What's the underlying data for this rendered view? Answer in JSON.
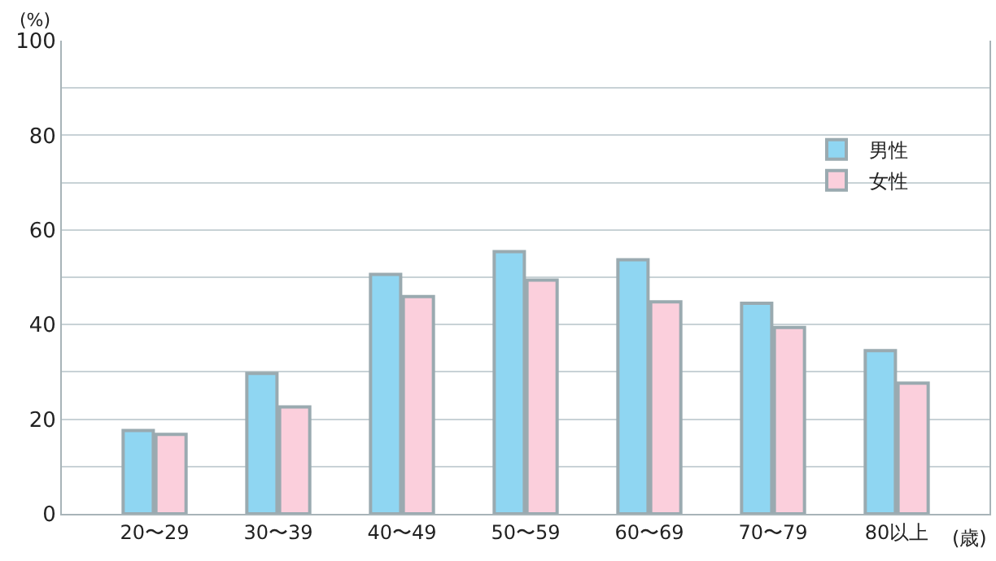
{
  "chart_data": {
    "type": "bar",
    "ylabel": "(%)",
    "xlabel": "(歳)",
    "categories": [
      "20〜29",
      "30〜39",
      "40〜49",
      "50〜59",
      "60〜69",
      "70〜79",
      "80以上"
    ],
    "series": [
      {
        "name": "男性",
        "color": "#8fd6f2",
        "values": [
          17.6,
          29.7,
          50.6,
          55.4,
          53.7,
          44.5,
          34.5
        ]
      },
      {
        "name": "女性",
        "color": "#fbcfdc",
        "values": [
          16.8,
          22.6,
          45.9,
          49.4,
          44.8,
          39.4,
          27.6
        ]
      }
    ],
    "ylim": [
      0,
      100
    ],
    "yticks": [
      0,
      {
        "value": 10,
        "label": null
      },
      20,
      {
        "value": 30,
        "label": null
      },
      40,
      {
        "value": 50,
        "label": null
      },
      60,
      {
        "value": 70,
        "label": null
      },
      80,
      {
        "value": 90,
        "label": null
      },
      100
    ],
    "grid": "y",
    "legend": "top right"
  }
}
